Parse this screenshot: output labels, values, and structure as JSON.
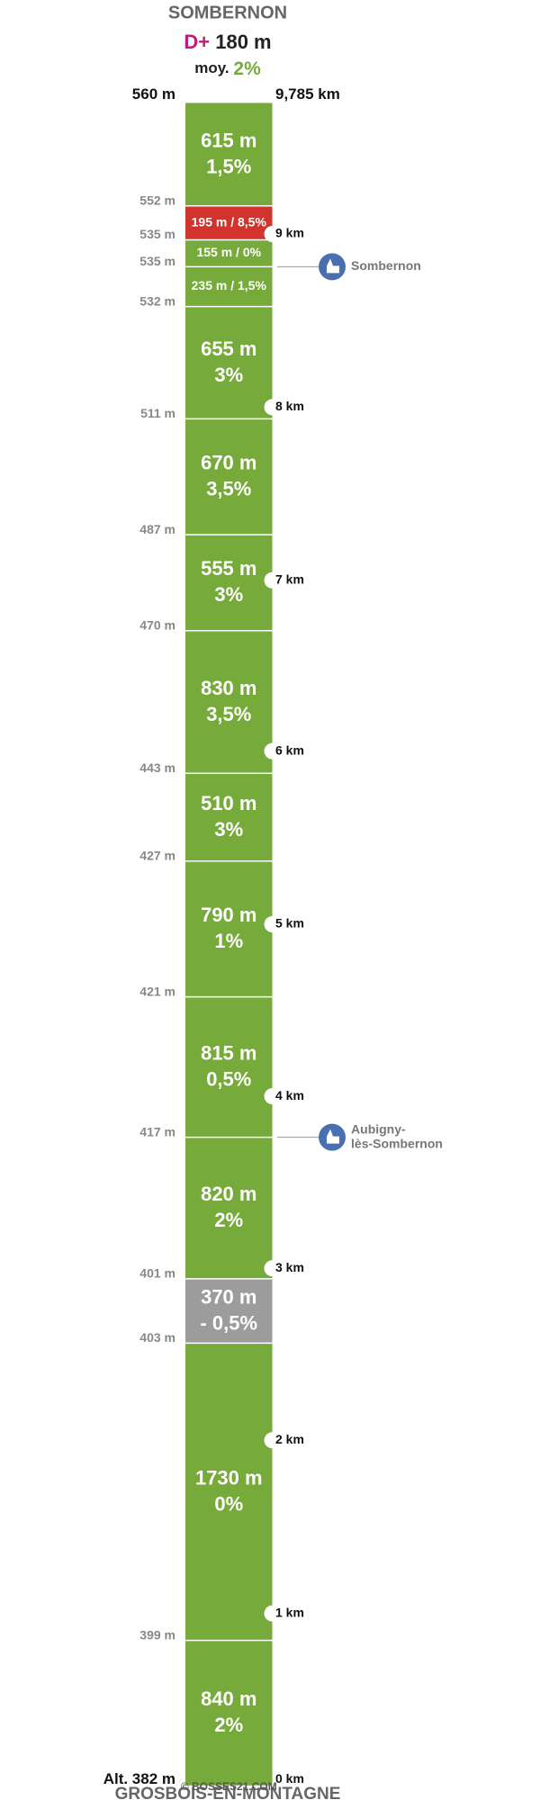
{
  "header": {
    "title": "SOMBERNON",
    "elevation_gain_label": "D+",
    "elevation_gain": "180 m",
    "average_label": "moy.",
    "average": "2%"
  },
  "top": {
    "altitude": "560 m",
    "distance": "9,785 km"
  },
  "segments": [
    {
      "length": "615 m",
      "grade": "1,5%"
    },
    {
      "label": "195 m / 8,5%"
    },
    {
      "label": "155 m / 0%"
    },
    {
      "label": "235 m / 1,5%"
    },
    {
      "length": "655 m",
      "grade": "3%"
    },
    {
      "length": "670 m",
      "grade": "3,5%"
    },
    {
      "length": "555 m",
      "grade": "3%"
    },
    {
      "length": "830 m",
      "grade": "3,5%"
    },
    {
      "length": "510 m",
      "grade": "3%"
    },
    {
      "length": "790 m",
      "grade": "1%"
    },
    {
      "length": "815 m",
      "grade": "0,5%"
    },
    {
      "length": "820 m",
      "grade": "2%"
    },
    {
      "length": "370 m",
      "grade": "- 0,5%"
    },
    {
      "length": "1730 m",
      "grade": "0%"
    },
    {
      "length": "840 m",
      "grade": "2%"
    }
  ],
  "altitudes": [
    "552 m",
    "535 m",
    "535 m",
    "532 m",
    "511 m",
    "487 m",
    "470 m",
    "443 m",
    "427 m",
    "421 m",
    "417 m",
    "401 m",
    "403 m",
    "399 m"
  ],
  "km_markers": [
    "9 km",
    "8 km",
    "7 km",
    "6 km",
    "5 km",
    "4 km",
    "3 km",
    "2 km",
    "1 km"
  ],
  "places": [
    {
      "lines": [
        "Sombernon"
      ]
    },
    {
      "lines": [
        "Aubigny-",
        "lès-Sombernon"
      ]
    }
  ],
  "start": {
    "altitude": "Alt. 382 m",
    "distance": "0 km",
    "name": "GROSBOIS-EN-MONTAGNE"
  },
  "credit": "© BOSSES21.COM"
}
